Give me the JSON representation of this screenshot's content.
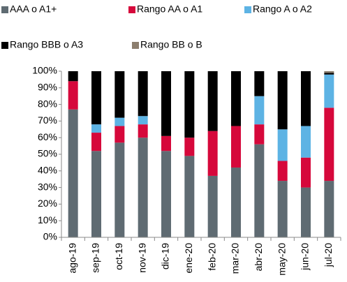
{
  "chart_data": {
    "type": "stacked_bar",
    "categories": [
      "ago-19",
      "sep-19",
      "oct-19",
      "nov-19",
      "dic-19",
      "ene-20",
      "feb-20",
      "mar-20",
      "abr-20",
      "may-20",
      "jun-20",
      "jul-20"
    ],
    "series": [
      {
        "name": "AAA o A1+",
        "color": "#5f6b72",
        "values": [
          77,
          52,
          57,
          60,
          52,
          49,
          37,
          42,
          56,
          34,
          30,
          34
        ]
      },
      {
        "name": "Rango AA o A1",
        "color": "#d6083b",
        "values": [
          17,
          11,
          10,
          8,
          9,
          11,
          27,
          25,
          12,
          12,
          18,
          44
        ]
      },
      {
        "name": "Rango A o A2",
        "color": "#5db3e4",
        "values": [
          0,
          5,
          5,
          5,
          0,
          0,
          0,
          0,
          17,
          19,
          19,
          20
        ]
      },
      {
        "name": "Rango BBB o A3",
        "color": "#000000",
        "values": [
          6,
          32,
          28,
          27,
          39,
          40,
          36,
          33,
          15,
          35,
          33,
          1
        ]
      },
      {
        "name": "Rango BB o B",
        "color": "#8c7e6e",
        "values": [
          0,
          0,
          0,
          0,
          0,
          0,
          0,
          0,
          0,
          0,
          0,
          1
        ]
      }
    ],
    "ylim": [
      0,
      100
    ],
    "yticks": [
      {
        "value": 0,
        "label": "0%"
      },
      {
        "value": 10,
        "label": "10%"
      },
      {
        "value": 20,
        "label": "20%"
      },
      {
        "value": 30,
        "label": "30%"
      },
      {
        "value": 40,
        "label": "40%"
      },
      {
        "value": 50,
        "label": "50%"
      },
      {
        "value": 60,
        "label": "60%"
      },
      {
        "value": 70,
        "label": "70%"
      },
      {
        "value": 80,
        "label": "80%"
      },
      {
        "value": 90,
        "label": "90%"
      },
      {
        "value": 100,
        "label": "100%"
      }
    ]
  }
}
